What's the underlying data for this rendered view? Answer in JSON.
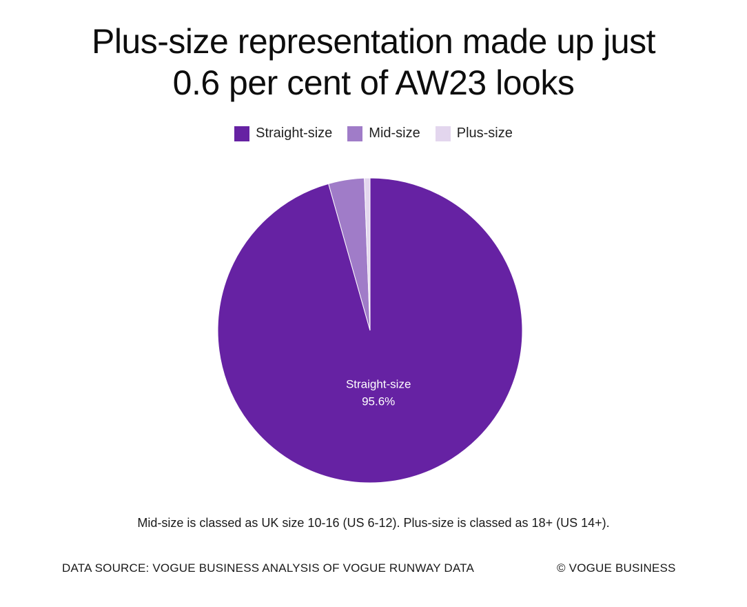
{
  "chart_data": {
    "type": "pie",
    "title": "Plus-size representation made up just 0.6 per cent of AW23 looks",
    "slices": [
      {
        "label": "Straight-size",
        "value": 95.6,
        "color": "#6622a3",
        "display": "95.6%"
      },
      {
        "label": "Mid-size",
        "value": 3.8,
        "color": "#a07cc8",
        "display": ""
      },
      {
        "label": "Plus-size",
        "value": 0.6,
        "color": "#e3d6ee",
        "display": ""
      }
    ],
    "legend": {
      "placement": "top-center",
      "entries": [
        "Straight-size",
        "Mid-size",
        "Plus-size"
      ]
    }
  },
  "page": {
    "title_line1": "Plus-size representation made up just",
    "title_line2": "0.6 per cent of AW23 looks",
    "note": "Mid-size is classed as UK size 10-16 (US 6-12). Plus-size is classed as 18+ (US 14+).",
    "source": "DATA SOURCE: VOGUE BUSINESS ANALYSIS OF VOGUE RUNWAY DATA",
    "copyright": "© VOGUE BUSINESS"
  }
}
